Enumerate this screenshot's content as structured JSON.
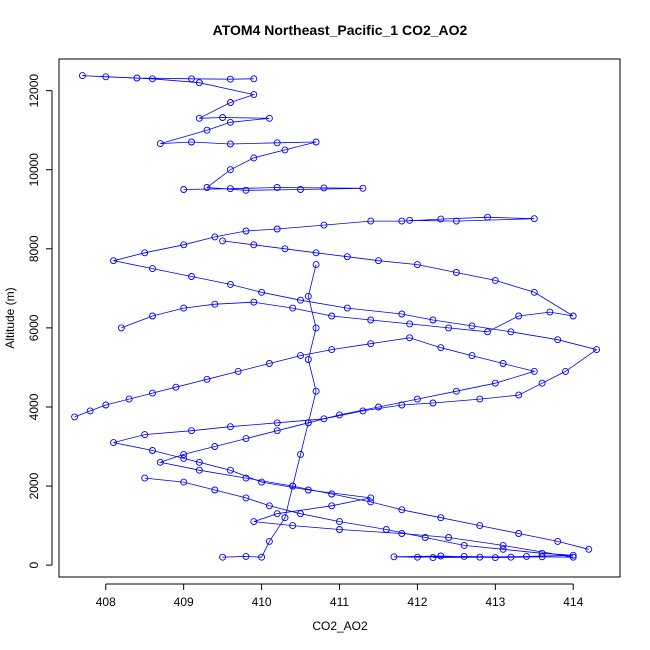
{
  "chart_data": {
    "type": "scatter",
    "title": "ATOM4 Northeast_Pacific_1 CO2_AO2",
    "xlabel": "CO2_AO2",
    "ylabel": "Altitude (m)",
    "xlim": [
      407.4,
      414.6
    ],
    "ylim": [
      -300,
      12800
    ],
    "x_ticks": [
      408,
      409,
      410,
      411,
      412,
      413,
      414
    ],
    "y_ticks": [
      0,
      2000,
      4000,
      6000,
      8000,
      10000,
      12000
    ],
    "marker": "open-circle",
    "connected": true,
    "color": "#0000ff",
    "series": [
      {
        "points": [
          [
            413.2,
            200
          ],
          [
            412.6,
            220
          ],
          [
            412.0,
            200
          ],
          [
            411.7,
            210
          ],
          [
            412.3,
            230
          ],
          [
            413.0,
            190
          ],
          [
            413.6,
            210
          ],
          [
            414.0,
            200
          ],
          [
            413.1,
            500
          ],
          [
            412.4,
            700
          ],
          [
            411.8,
            800
          ],
          [
            411.0,
            900
          ],
          [
            410.4,
            1000
          ],
          [
            409.9,
            1100
          ],
          [
            410.2,
            1300
          ],
          [
            410.9,
            1500
          ],
          [
            411.4,
            1700
          ],
          [
            410.6,
            1900
          ],
          [
            410.0,
            2100
          ],
          [
            409.6,
            2400
          ],
          [
            409.2,
            2600
          ],
          [
            409.0,
            2700
          ],
          [
            408.6,
            2900
          ],
          [
            408.1,
            3100
          ],
          [
            408.5,
            3300
          ],
          [
            409.1,
            3400
          ],
          [
            409.6,
            3500
          ],
          [
            410.2,
            3600
          ],
          [
            410.8,
            3700
          ],
          [
            411.3,
            3900
          ],
          [
            411.8,
            4050
          ],
          [
            412.2,
            4100
          ],
          [
            412.8,
            4200
          ],
          [
            413.3,
            4300
          ],
          [
            413.6,
            4600
          ],
          [
            413.9,
            4900
          ],
          [
            414.3,
            5450
          ],
          [
            413.8,
            5700
          ],
          [
            413.2,
            5900
          ],
          [
            412.7,
            6050
          ],
          [
            412.2,
            6200
          ],
          [
            411.8,
            6350
          ],
          [
            411.1,
            6500
          ],
          [
            410.5,
            6700
          ],
          [
            410.0,
            6900
          ],
          [
            409.6,
            7100
          ],
          [
            409.1,
            7300
          ],
          [
            408.6,
            7500
          ],
          [
            408.1,
            7700
          ],
          [
            408.5,
            7900
          ],
          [
            409.0,
            8100
          ],
          [
            409.4,
            8300
          ],
          [
            409.8,
            8450
          ],
          [
            410.2,
            8500
          ],
          [
            410.8,
            8600
          ],
          [
            411.4,
            8700
          ],
          [
            411.8,
            8700
          ],
          [
            412.3,
            8750
          ],
          [
            412.9,
            8800
          ],
          [
            413.5,
            8760
          ],
          [
            412.5,
            8700
          ],
          [
            411.9,
            8720
          ]
        ]
      },
      {
        "points": [
          [
            409.0,
            9500
          ],
          [
            409.6,
            9520
          ],
          [
            410.2,
            9550
          ],
          [
            410.8,
            9540
          ],
          [
            411.3,
            9530
          ],
          [
            410.5,
            9500
          ],
          [
            409.8,
            9480
          ],
          [
            409.3,
            9550
          ],
          [
            409.6,
            10000
          ],
          [
            409.9,
            10300
          ],
          [
            410.3,
            10500
          ],
          [
            410.7,
            10700
          ],
          [
            410.2,
            10680
          ],
          [
            409.6,
            10650
          ],
          [
            409.1,
            10700
          ],
          [
            408.7,
            10660
          ],
          [
            409.3,
            11000
          ],
          [
            409.6,
            11200
          ],
          [
            410.1,
            11300
          ],
          [
            409.5,
            11320
          ],
          [
            409.2,
            11300
          ],
          [
            409.6,
            11700
          ],
          [
            409.9,
            11900
          ],
          [
            409.2,
            12200
          ],
          [
            408.6,
            12300
          ],
          [
            408.0,
            12350
          ],
          [
            407.7,
            12380
          ],
          [
            408.4,
            12320
          ],
          [
            409.1,
            12300
          ],
          [
            409.6,
            12290
          ],
          [
            409.9,
            12300
          ]
        ]
      },
      {
        "points": [
          [
            407.6,
            3750
          ],
          [
            407.8,
            3900
          ],
          [
            408.0,
            4050
          ],
          [
            408.3,
            4200
          ],
          [
            408.6,
            4350
          ],
          [
            408.9,
            4500
          ],
          [
            409.3,
            4700
          ],
          [
            409.7,
            4900
          ],
          [
            410.1,
            5100
          ],
          [
            410.5,
            5300
          ],
          [
            410.9,
            5450
          ],
          [
            411.4,
            5600
          ],
          [
            411.9,
            5750
          ],
          [
            412.3,
            5500
          ],
          [
            412.7,
            5300
          ],
          [
            413.1,
            5100
          ],
          [
            413.5,
            4900
          ],
          [
            413.0,
            4600
          ],
          [
            412.5,
            4400
          ],
          [
            412.0,
            4200
          ],
          [
            411.5,
            4000
          ],
          [
            411.0,
            3800
          ],
          [
            410.6,
            3600
          ],
          [
            410.2,
            3400
          ],
          [
            409.8,
            3200
          ],
          [
            409.4,
            3000
          ],
          [
            409.0,
            2800
          ],
          [
            408.7,
            2600
          ],
          [
            409.2,
            2400
          ],
          [
            409.8,
            2200
          ],
          [
            410.4,
            2000
          ],
          [
            410.9,
            1800
          ],
          [
            411.4,
            1600
          ],
          [
            411.8,
            1400
          ],
          [
            412.3,
            1200
          ],
          [
            412.8,
            1000
          ],
          [
            413.3,
            800
          ],
          [
            413.8,
            600
          ],
          [
            414.2,
            400
          ]
        ]
      },
      {
        "points": [
          [
            410.7,
            7600
          ],
          [
            410.6,
            6800
          ],
          [
            410.7,
            6000
          ],
          [
            410.6,
            5200
          ],
          [
            410.7,
            4400
          ],
          [
            410.6,
            3600
          ],
          [
            410.5,
            2800
          ],
          [
            410.4,
            2000
          ],
          [
            410.3,
            1200
          ],
          [
            410.1,
            600
          ],
          [
            410.0,
            200
          ],
          [
            409.8,
            220
          ],
          [
            409.5,
            200
          ]
        ]
      },
      {
        "points": [
          [
            408.2,
            6000
          ],
          [
            408.6,
            6300
          ],
          [
            409.0,
            6500
          ],
          [
            409.4,
            6600
          ],
          [
            409.9,
            6650
          ],
          [
            410.4,
            6500
          ],
          [
            410.9,
            6300
          ],
          [
            411.4,
            6200
          ],
          [
            411.9,
            6100
          ],
          [
            412.4,
            6000
          ],
          [
            412.9,
            5900
          ],
          [
            413.3,
            6300
          ],
          [
            413.7,
            6400
          ],
          [
            414.0,
            6300
          ],
          [
            413.5,
            6900
          ],
          [
            413.0,
            7200
          ],
          [
            412.5,
            7400
          ],
          [
            412.0,
            7600
          ],
          [
            411.5,
            7700
          ],
          [
            411.1,
            7800
          ],
          [
            410.7,
            7900
          ],
          [
            410.3,
            8000
          ],
          [
            409.9,
            8100
          ],
          [
            409.5,
            8200
          ]
        ]
      },
      {
        "points": [
          [
            408.5,
            2200
          ],
          [
            409.0,
            2100
          ],
          [
            409.4,
            1900
          ],
          [
            409.8,
            1700
          ],
          [
            410.1,
            1500
          ],
          [
            410.5,
            1300
          ],
          [
            411.0,
            1100
          ],
          [
            411.6,
            900
          ],
          [
            412.1,
            700
          ],
          [
            412.6,
            500
          ],
          [
            413.1,
            400
          ],
          [
            413.6,
            300
          ],
          [
            414.0,
            250
          ],
          [
            413.4,
            220
          ],
          [
            412.8,
            200
          ],
          [
            412.2,
            190
          ]
        ]
      }
    ]
  }
}
